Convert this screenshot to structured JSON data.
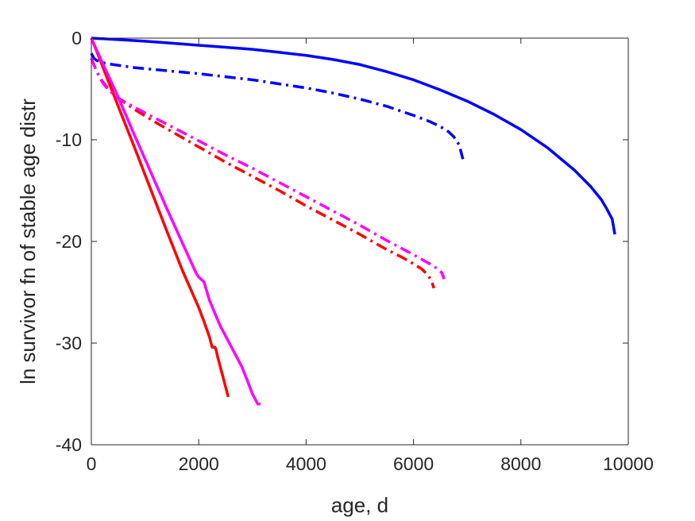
{
  "chart_data": {
    "type": "line",
    "title": "",
    "xlabel": "age, d",
    "ylabel": "ln survivor fn of stable age distr",
    "xlim": [
      0,
      10000
    ],
    "ylim": [
      -40,
      0
    ],
    "xticks": [
      0,
      2000,
      4000,
      6000,
      8000,
      10000
    ],
    "xtick_labels": [
      "0",
      "2000",
      "4000",
      "6000",
      "8000",
      "10000"
    ],
    "yticks": [
      0,
      -10,
      -20,
      -30,
      -40
    ],
    "ytick_labels": [
      "0",
      "-10",
      "-20",
      "-30",
      "-40"
    ],
    "grid": false,
    "legend": "none",
    "series": [
      {
        "color": "#0000ff",
        "style": "solid",
        "x": [
          0,
          500,
          1000,
          1500,
          2000,
          2500,
          3000,
          3500,
          4000,
          4500,
          5000,
          5500,
          6000,
          6500,
          7000,
          7500,
          8000,
          8500,
          9000,
          9300,
          9500,
          9600,
          9700,
          9750
        ],
        "y": [
          0,
          -0.15,
          -0.3,
          -0.5,
          -0.7,
          -0.9,
          -1.1,
          -1.4,
          -1.7,
          -2.1,
          -2.6,
          -3.3,
          -4.1,
          -5.1,
          -6.2,
          -7.5,
          -9.0,
          -10.8,
          -13.0,
          -14.6,
          -15.9,
          -16.8,
          -17.8,
          -19.3
        ]
      },
      {
        "color": "#0000ff",
        "style": "dashdot",
        "x": [
          0,
          20,
          50,
          100,
          200,
          400,
          800,
          1200,
          1600,
          2000,
          2500,
          3000,
          3500,
          4000,
          4500,
          5000,
          5500,
          6000,
          6300,
          6500,
          6650,
          6750,
          6850,
          6920
        ],
        "y": [
          -1.5,
          -1.7,
          -2.0,
          -2.2,
          -2.4,
          -2.6,
          -2.9,
          -3.1,
          -3.3,
          -3.5,
          -3.8,
          -4.1,
          -4.5,
          -4.9,
          -5.4,
          -6.0,
          -6.7,
          -7.6,
          -8.2,
          -8.7,
          -9.2,
          -9.7,
          -10.5,
          -11.9
        ]
      },
      {
        "color": "#ff0000",
        "style": "solid",
        "x": [
          0,
          100,
          300,
          500,
          800,
          1100,
          1400,
          1700,
          1900,
          2000,
          2100,
          2200,
          2250,
          2300,
          2320,
          2350,
          2450,
          2550
        ],
        "y": [
          0,
          -1.3,
          -4.0,
          -6.7,
          -10.7,
          -14.8,
          -18.9,
          -22.9,
          -25.3,
          -26.5,
          -27.9,
          -29.4,
          -30.4,
          -30.4,
          -30.6,
          -31.3,
          -33.3,
          -35.3
        ]
      },
      {
        "color": "#ff0000",
        "style": "dashdot",
        "x": [
          0,
          100,
          200,
          300,
          500,
          800,
          1200,
          1600,
          2000,
          2500,
          3000,
          3500,
          4000,
          4500,
          5000,
          5500,
          5800,
          6000,
          6150,
          6250,
          6330,
          6380
        ],
        "y": [
          -2.0,
          -3.3,
          -4.2,
          -4.9,
          -5.9,
          -7.0,
          -8.3,
          -9.5,
          -10.7,
          -12.2,
          -13.6,
          -15.0,
          -16.5,
          -17.9,
          -19.3,
          -20.8,
          -21.6,
          -22.2,
          -22.7,
          -23.2,
          -23.8,
          -24.6
        ]
      },
      {
        "color": "#ff00ff",
        "style": "solid",
        "x": [
          0,
          100,
          300,
          500,
          800,
          1100,
          1400,
          1700,
          1950,
          2000,
          2100,
          2200,
          2400,
          2600,
          2800,
          2900,
          3000,
          3100,
          3150
        ],
        "y": [
          0,
          -1.2,
          -3.5,
          -5.8,
          -9.5,
          -13.1,
          -16.7,
          -20.2,
          -23.1,
          -23.5,
          -24.0,
          -25.8,
          -28.3,
          -30.3,
          -32.3,
          -33.6,
          -35.0,
          -36.0,
          -36.0
        ]
      },
      {
        "color": "#ff00ff",
        "style": "dashdot",
        "x": [
          0,
          100,
          200,
          300,
          500,
          800,
          1200,
          1600,
          2000,
          2500,
          3000,
          3500,
          4000,
          4500,
          5000,
          5500,
          6000,
          6300,
          6450,
          6530,
          6570
        ],
        "y": [
          -2.0,
          -3.3,
          -4.3,
          -5.0,
          -5.9,
          -6.8,
          -7.9,
          -9.0,
          -10.1,
          -11.5,
          -12.8,
          -14.2,
          -15.6,
          -17.0,
          -18.4,
          -19.9,
          -21.3,
          -22.2,
          -22.7,
          -23.1,
          -23.7
        ]
      }
    ]
  }
}
